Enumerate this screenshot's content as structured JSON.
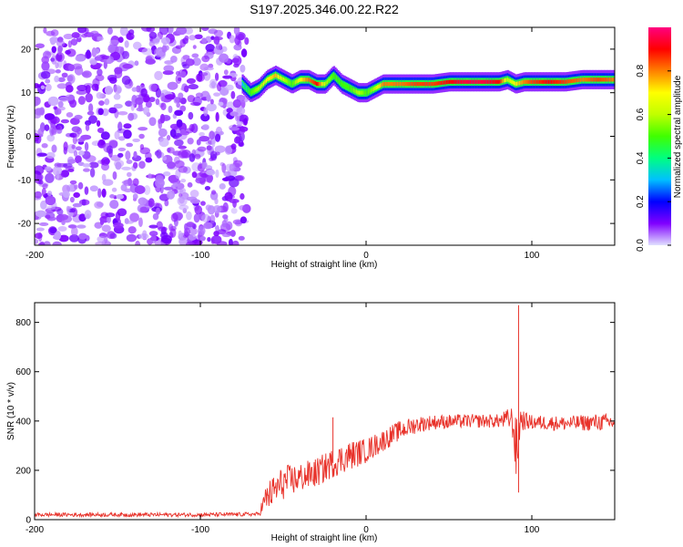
{
  "title": "S197.2025.346.00.22.R22",
  "chart_data": [
    {
      "type": "heatmap",
      "xlabel": "Height of straight line (km)",
      "ylabel": "Frequency (Hz)",
      "xlim": [
        -200,
        150
      ],
      "ylim": [
        -25,
        25
      ],
      "xticks": [
        -200,
        -100,
        0,
        100
      ],
      "yticks": [
        -20,
        -10,
        0,
        10,
        20
      ],
      "colorbar": {
        "label": "Normalized spectral amplitude",
        "range": [
          0,
          1
        ],
        "ticks": [
          "0.0",
          "0.2",
          "0.4",
          "0.6",
          "0.8"
        ],
        "colormap": [
          "#e0e0ff",
          "#8000ff",
          "#0000ff",
          "#00c0ff",
          "#00ff80",
          "#80ff00",
          "#ffff00",
          "#ff8000",
          "#ff0000",
          "#ff0080"
        ]
      },
      "ridge": {
        "x": [
          -75,
          -70,
          -65,
          -60,
          -55,
          -50,
          -45,
          -40,
          -35,
          -30,
          -25,
          -20,
          -15,
          -10,
          -5,
          0,
          5,
          10,
          20,
          30,
          40,
          50,
          60,
          70,
          80,
          85,
          90,
          95,
          100,
          110,
          120,
          130,
          140,
          150
        ],
        "y": [
          12,
          10,
          11,
          13,
          14,
          13,
          12,
          13,
          13,
          12,
          12,
          14,
          12,
          11,
          10,
          10,
          11,
          12,
          12,
          12,
          12,
          12.5,
          12.5,
          12.5,
          12.5,
          13,
          12,
          12.5,
          12.5,
          12.5,
          12.5,
          13,
          13,
          13
        ],
        "amplitude": [
          0.3,
          0.5,
          0.6,
          0.7,
          0.75,
          0.6,
          0.5,
          0.7,
          0.8,
          0.9,
          0.6,
          0.5,
          0.5,
          0.5,
          0.6,
          0.5,
          0.6,
          0.8,
          0.8,
          0.85,
          0.85,
          0.9,
          0.95,
          0.95,
          0.9,
          0.6,
          0.7,
          0.8,
          0.85,
          0.9,
          0.85,
          0.8,
          0.85,
          0.8
        ]
      },
      "noise_region": {
        "x": [
          -200,
          -72
        ],
        "amplitude": [
          0.02,
          0.12
        ]
      }
    },
    {
      "type": "line",
      "xlabel": "Height of straight line (km)",
      "ylabel": "SNR (10 * v/v)",
      "xlim": [
        -200,
        150
      ],
      "ylim": [
        0,
        880
      ],
      "xticks": [
        -200,
        -100,
        0,
        100
      ],
      "yticks": [
        0,
        200,
        400,
        600,
        800
      ],
      "color": "#e8322a",
      "envelope": {
        "x": [
          -200,
          -150,
          -100,
          -65,
          -60,
          -50,
          -40,
          -30,
          -20,
          -10,
          0,
          10,
          20,
          30,
          40,
          60,
          80,
          88,
          91,
          93,
          96,
          100,
          120,
          140,
          150
        ],
        "y": [
          20,
          20,
          20,
          22,
          90,
          150,
          170,
          190,
          230,
          260,
          280,
          320,
          360,
          385,
          395,
          400,
          400,
          410,
          260,
          410,
          400,
          395,
          390,
          395,
          395
        ],
        "spread": [
          8,
          8,
          8,
          8,
          60,
          70,
          60,
          60,
          60,
          60,
          50,
          45,
          40,
          35,
          30,
          28,
          28,
          50,
          150,
          60,
          35,
          30,
          30,
          35,
          35
        ]
      },
      "annotations": [
        {
          "x": -20,
          "y": 415
        },
        {
          "x": 92,
          "y": 870
        },
        {
          "x": 92,
          "y": 110
        }
      ]
    }
  ]
}
